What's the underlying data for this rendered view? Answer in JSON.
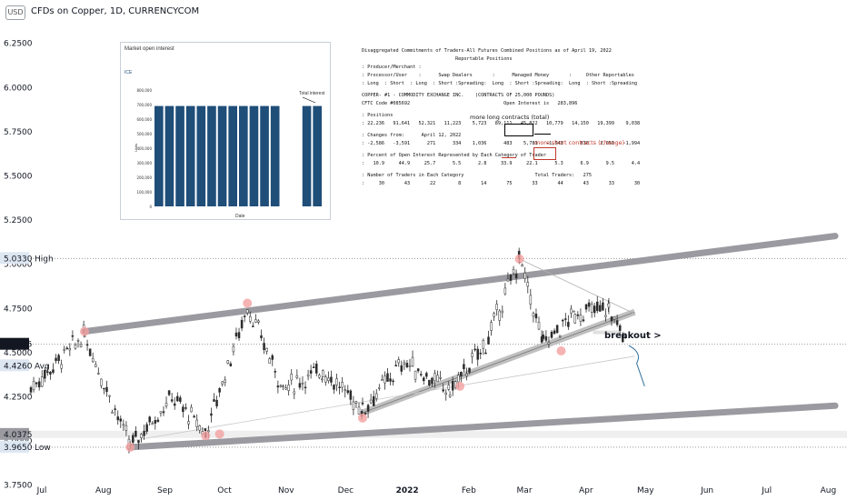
{
  "header": {
    "currency": "USD",
    "symbol_title": "CFDs on Copper, 1D, CURRENCYCOM"
  },
  "colors": {
    "channel": "#9a9aa0",
    "candle": "#2b2b2b",
    "marker": "#f4a0a0",
    "arrow": "#2f6e9c",
    "bar": "#1f4e79",
    "red": "#c0392b"
  },
  "price_axis": {
    "ticks": [
      "6.2500",
      "6.0000",
      "5.7500",
      "5.5000",
      "5.2500",
      "5.0000",
      "4.7500",
      "4.5000",
      "4.2500",
      "4.0000",
      "3.7500"
    ],
    "labels": {
      "high": {
        "text": "High",
        "value": "5.0330"
      },
      "current": {
        "value": "4.5475"
      },
      "avg": {
        "text": "Avg",
        "value": "4.4260"
      },
      "level": {
        "value": "4.0375"
      },
      "low": {
        "text": "Low",
        "value": "3.9650"
      }
    }
  },
  "time_axis": {
    "ticks": [
      "Jul",
      "Aug",
      "Sep",
      "Oct",
      "Nov",
      "Dec",
      "2022",
      "Feb",
      "Mar",
      "Apr",
      "May",
      "Jun",
      "Jul",
      "Aug"
    ]
  },
  "annotation": {
    "breakout": "breakout >"
  },
  "inset": {
    "title": "Market open interest",
    "legend": "ICE",
    "note": "Total interest",
    "ylabel": "Units",
    "xlabel": "Date",
    "yticks": [
      "800,000",
      "700,000",
      "600,000",
      "500,000",
      "400,000",
      "300,000",
      "200,000",
      "100,000",
      "0"
    ]
  },
  "cot_report": {
    "lines": [
      "Disaggregated Commitments of Traders-All Futures Combined Positions as of April 19, 2022",
      "                                 Reportable Positions",
      ": Producer/Merchant :",
      ": Processor/User    :      Swap Dealers       :      Managed Money       :     Other Reportables",
      ": Long  : Short  : Long  : Short :Spreading:  Long  : Short :Spreading:  Long  : Short :Spreading",
      "COPPER- #1 - COMMODITY EXCHANGE INC.    (CONTRACTS OF 25,000 POUNDS)",
      "CFTC Code #085692                                 Open Interest is   283,896",
      ": Positions",
      ": 22,236   91,641   52,321   11,223    5,723   89,111   45,822   10,779   14,150   19,399    9,038",
      ": Changes from:      April 12, 2022",
      ": -2,586   -3,591      271      334    1,036      483    5,781   -1,543      838    2,050   -1,994",
      ": Percent of Open Interest Represented by Each Category of Trader",
      ":   10.9     44.9     25.7      5.5      2.8     33.9     22.1      5.3      6.9      9.5      4.4",
      ": Number of Traders in Each Category                         Total Traders:   275",
      ":     30       43       22        8       14       75       33       44       43       33       30"
    ],
    "note_long": "more long contracts (total)",
    "note_short": "more short contracts (change)"
  },
  "chart_data": [
    {
      "type": "candlestick",
      "title": "CFDs on Copper, 1D, CURRENCYCOM",
      "ylabel": "USD",
      "ylim": [
        3.8,
        6.3
      ],
      "x_range": [
        "2021-07-01",
        "2022-08-15"
      ],
      "summary": {
        "high": 5.033,
        "last": 4.5475,
        "avg": 4.426,
        "low": 3.965
      },
      "channel": {
        "upper": [
          [
            "2021-07-28",
            4.62
          ],
          [
            "2022-08-10",
            5.16
          ]
        ],
        "lower": [
          [
            "2021-08-20",
            3.965
          ],
          [
            "2022-08-10",
            4.2
          ]
        ]
      },
      "triangle": {
        "top_from": [
          "2022-03-04",
          5.03
        ],
        "apex": [
          "2022-05-01",
          4.72
        ],
        "bottom_from": [
          "2021-08-20",
          4.0
        ]
      },
      "grid": false
    },
    {
      "type": "bar",
      "title": "Market open interest",
      "series": [
        {
          "name": "ICE",
          "values": [
            690000,
            690000,
            690000,
            690000,
            690000,
            690000,
            690000,
            690000,
            690000,
            690000,
            690000,
            690000,
            0,
            0,
            690000,
            690000
          ]
        }
      ],
      "ylabel": "Units",
      "xlabel": "Date",
      "ylim": [
        0,
        800000
      ]
    }
  ]
}
